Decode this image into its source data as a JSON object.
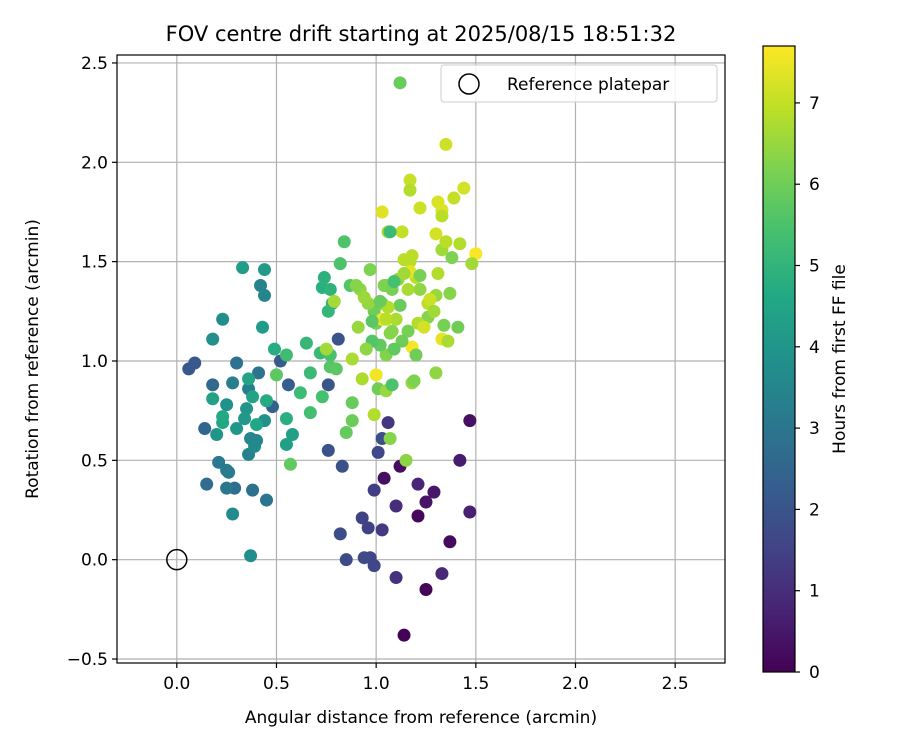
{
  "chart_data": {
    "type": "scatter",
    "title": "FOV centre drift starting at 2025/08/15 18:51:32",
    "xlabel": "Angular distance from reference (arcmin)",
    "ylabel": "Rotation from reference (arcmin)",
    "xlim": [
      -0.3,
      2.75
    ],
    "ylim": [
      -0.52,
      2.54
    ],
    "xticks": [
      0.0,
      0.5,
      1.0,
      1.5,
      2.0,
      2.5
    ],
    "xtick_labels": [
      "0.0",
      "0.5",
      "1.0",
      "1.5",
      "2.0",
      "2.5"
    ],
    "yticks": [
      -0.5,
      0.0,
      0.5,
      1.0,
      1.5,
      2.0,
      2.5
    ],
    "ytick_labels": [
      "−0.5",
      "0.0",
      "0.5",
      "1.0",
      "1.5",
      "2.0",
      "2.5"
    ],
    "grid": true,
    "legend": {
      "placement": "top-right",
      "entries": [
        "Reference platepar"
      ]
    },
    "colorbar": {
      "label": "Hours from first FF file",
      "colormap": "viridis",
      "range": [
        0,
        7.7
      ],
      "ticks": [
        0,
        1,
        2,
        3,
        4,
        5,
        6,
        7
      ],
      "tick_labels": [
        "0",
        "1",
        "2",
        "3",
        "4",
        "5",
        "6",
        "7"
      ]
    },
    "reference_point": {
      "x": 0.0,
      "y": 0.0
    },
    "points": [
      [
        1.14,
        -0.38,
        0.05
      ],
      [
        1.25,
        -0.15,
        0.1
      ],
      [
        1.21,
        0.22,
        0.15
      ],
      [
        1.37,
        0.09,
        0.2
      ],
      [
        1.12,
        0.47,
        0.25
      ],
      [
        1.04,
        0.41,
        0.3
      ],
      [
        1.47,
        0.7,
        0.35
      ],
      [
        1.25,
        0.29,
        0.4
      ],
      [
        1.29,
        0.34,
        0.5
      ],
      [
        1.42,
        0.5,
        0.6
      ],
      [
        1.47,
        0.24,
        0.7
      ],
      [
        1.21,
        0.38,
        0.8
      ],
      [
        1.33,
        -0.07,
        0.9
      ],
      [
        1.1,
        0.27,
        1.0
      ],
      [
        1.1,
        -0.09,
        1.1
      ],
      [
        1.06,
        0.69,
        1.2
      ],
      [
        1.03,
        0.15,
        1.3
      ],
      [
        0.99,
        0.35,
        1.4
      ],
      [
        0.96,
        0.16,
        1.45
      ],
      [
        0.93,
        0.21,
        1.5
      ],
      [
        0.97,
        0.01,
        1.55
      ],
      [
        0.99,
        -0.03,
        1.6
      ],
      [
        1.01,
        0.54,
        1.65
      ],
      [
        0.94,
        0.01,
        1.7
      ],
      [
        0.85,
        0.0,
        1.75
      ],
      [
        0.82,
        0.13,
        1.8
      ],
      [
        1.03,
        0.61,
        1.85
      ],
      [
        0.83,
        0.47,
        1.9
      ],
      [
        0.76,
        0.55,
        1.95
      ],
      [
        0.81,
        1.11,
        2.0
      ],
      [
        0.76,
        0.88,
        2.05
      ],
      [
        0.06,
        0.96,
        2.1
      ],
      [
        0.09,
        0.99,
        2.15
      ],
      [
        0.52,
        1.0,
        2.2
      ],
      [
        0.56,
        0.88,
        2.3
      ],
      [
        0.48,
        0.77,
        2.4
      ],
      [
        0.14,
        0.66,
        2.5
      ],
      [
        0.18,
        0.88,
        2.6
      ],
      [
        0.15,
        0.38,
        2.7
      ],
      [
        0.29,
        0.36,
        2.8
      ],
      [
        0.38,
        0.35,
        2.85
      ],
      [
        0.3,
        0.99,
        2.9
      ],
      [
        0.41,
        0.94,
        2.95
      ],
      [
        0.45,
        0.3,
        3.0
      ],
      [
        0.25,
        0.36,
        3.05
      ],
      [
        0.21,
        0.49,
        3.1
      ],
      [
        0.25,
        0.45,
        3.15
      ],
      [
        0.26,
        0.44,
        3.2
      ],
      [
        0.28,
        0.89,
        3.25
      ],
      [
        0.36,
        0.86,
        3.3
      ],
      [
        0.36,
        0.53,
        3.35
      ],
      [
        0.42,
        1.38,
        3.4
      ],
      [
        0.44,
        1.33,
        3.45
      ],
      [
        0.37,
        0.61,
        3.5
      ],
      [
        0.4,
        0.6,
        3.55
      ],
      [
        0.39,
        0.57,
        3.6
      ],
      [
        0.28,
        0.23,
        3.65
      ],
      [
        0.37,
        0.02,
        3.7
      ],
      [
        0.23,
        1.21,
        3.75
      ],
      [
        0.18,
        1.11,
        3.8
      ],
      [
        0.25,
        0.78,
        3.85
      ],
      [
        0.44,
        0.7,
        3.9
      ],
      [
        0.35,
        0.76,
        3.95
      ],
      [
        0.2,
        0.63,
        4.0
      ],
      [
        0.3,
        0.66,
        4.05
      ],
      [
        0.34,
        0.71,
        4.1
      ],
      [
        0.43,
        1.17,
        4.15
      ],
      [
        0.44,
        1.46,
        4.2
      ],
      [
        0.33,
        1.47,
        4.25
      ],
      [
        0.55,
        0.58,
        4.3
      ],
      [
        0.58,
        0.63,
        4.35
      ],
      [
        0.18,
        0.81,
        4.4
      ],
      [
        0.38,
        0.82,
        4.45
      ],
      [
        0.36,
        0.91,
        4.5
      ],
      [
        0.4,
        0.68,
        4.55
      ],
      [
        0.23,
        0.69,
        4.6
      ],
      [
        0.23,
        0.72,
        4.65
      ],
      [
        0.45,
        0.8,
        4.7
      ],
      [
        0.49,
        1.06,
        4.75
      ],
      [
        0.55,
        0.71,
        4.8
      ],
      [
        0.73,
        1.37,
        4.85
      ],
      [
        0.74,
        1.42,
        4.9
      ],
      [
        0.77,
        1.36,
        4.95
      ],
      [
        0.78,
        1.29,
        5.0
      ],
      [
        0.76,
        1.25,
        5.05
      ],
      [
        0.65,
        1.09,
        5.1
      ],
      [
        0.72,
        1.04,
        5.15
      ],
      [
        0.67,
        0.94,
        5.2
      ],
      [
        0.62,
        0.84,
        5.25
      ],
      [
        0.55,
        1.03,
        5.3
      ],
      [
        0.67,
        0.74,
        5.35
      ],
      [
        0.73,
        0.82,
        5.4
      ],
      [
        0.77,
        1.03,
        5.45
      ],
      [
        0.82,
        1.49,
        5.5
      ],
      [
        0.84,
        1.6,
        5.55
      ],
      [
        0.87,
        1.38,
        5.6
      ],
      [
        0.77,
        0.97,
        5.65
      ],
      [
        0.8,
        0.96,
        5.7
      ],
      [
        0.5,
        0.93,
        5.75
      ],
      [
        0.57,
        0.48,
        5.8
      ],
      [
        0.85,
        0.64,
        5.85
      ],
      [
        0.88,
        0.79,
        5.9
      ],
      [
        0.88,
        0.7,
        5.95
      ],
      [
        0.99,
        1.25,
        6.0
      ],
      [
        1.0,
        1.19,
        6.05
      ],
      [
        1.05,
        1.38,
        6.1
      ],
      [
        1.03,
        1.29,
        6.15
      ],
      [
        0.97,
        1.46,
        6.2
      ],
      [
        1.05,
        1.03,
        6.25
      ],
      [
        1.07,
        0.61,
        6.3
      ],
      [
        1.15,
        0.5,
        6.35
      ],
      [
        0.92,
        1.36,
        6.4
      ],
      [
        0.96,
        1.29,
        6.45
      ],
      [
        0.91,
        1.17,
        6.5
      ],
      [
        0.94,
        1.32,
        6.55
      ],
      [
        0.75,
        1.06,
        6.6
      ],
      [
        0.79,
        1.3,
        6.65
      ],
      [
        0.88,
        1.01,
        6.7
      ],
      [
        0.93,
        0.91,
        6.75
      ],
      [
        0.99,
        0.73,
        6.8
      ],
      [
        1.14,
        1.51,
        6.85
      ],
      [
        1.17,
        1.5,
        6.9
      ],
      [
        1.2,
        1.42,
        6.95
      ],
      [
        1.13,
        1.65,
        7.0
      ],
      [
        1.17,
        1.91,
        7.05
      ],
      [
        1.22,
        1.77,
        7.1
      ],
      [
        1.35,
        2.09,
        7.15
      ],
      [
        1.3,
        1.64,
        7.2
      ],
      [
        1.31,
        1.8,
        7.25
      ],
      [
        1.33,
        1.76,
        7.3
      ],
      [
        1.03,
        1.75,
        7.35
      ],
      [
        1.17,
        1.45,
        7.4
      ],
      [
        1.33,
        1.11,
        7.45
      ],
      [
        1.03,
        1.21,
        7.5
      ],
      [
        1.0,
        0.93,
        7.55
      ],
      [
        1.18,
        1.07,
        7.6
      ],
      [
        1.5,
        1.54,
        7.65
      ],
      [
        1.12,
        2.4,
        5.9
      ],
      [
        1.17,
        1.86,
        6.8
      ],
      [
        1.22,
        1.36,
        6.4
      ],
      [
        1.26,
        1.22,
        6.3
      ],
      [
        1.3,
        1.33,
        6.5
      ],
      [
        1.33,
        1.56,
        6.6
      ],
      [
        1.35,
        1.6,
        6.9
      ],
      [
        1.38,
        1.52,
        6.2
      ],
      [
        1.41,
        1.17,
        6.0
      ],
      [
        1.37,
        1.34,
        6.3
      ],
      [
        1.34,
        1.18,
        6.1
      ],
      [
        1.3,
        0.94,
        6.4
      ],
      [
        1.18,
        0.89,
        6.5
      ],
      [
        1.19,
        0.9,
        6.2
      ],
      [
        1.2,
        1.03,
        6.0
      ],
      [
        1.16,
        1.15,
        6.1
      ],
      [
        1.12,
        1.28,
        5.9
      ],
      [
        1.08,
        1.15,
        6.3
      ],
      [
        1.1,
        1.21,
        6.7
      ],
      [
        1.06,
        1.27,
        6.8
      ],
      [
        1.04,
        1.38,
        6.2
      ],
      [
        1.06,
        1.65,
        6.6
      ],
      [
        1.08,
        1.36,
        6.1
      ],
      [
        1.11,
        1.41,
        6.4
      ],
      [
        1.14,
        1.44,
        6.6
      ],
      [
        1.16,
        1.36,
        6.7
      ],
      [
        1.18,
        1.53,
        6.9
      ],
      [
        1.21,
        1.19,
        6.8
      ],
      [
        1.24,
        1.17,
        7.2
      ],
      [
        1.26,
        1.29,
        6.9
      ],
      [
        1.27,
        1.31,
        7.1
      ],
      [
        1.29,
        1.25,
        6.6
      ],
      [
        1.31,
        1.44,
        6.8
      ],
      [
        1.33,
        1.73,
        6.9
      ],
      [
        1.36,
        1.1,
        6.7
      ],
      [
        1.39,
        1.82,
        7.0
      ],
      [
        1.42,
        1.59,
        6.8
      ],
      [
        1.44,
        1.87,
        7.2
      ],
      [
        1.48,
        1.49,
        6.6
      ],
      [
        1.22,
        1.43,
        6.1
      ],
      [
        1.13,
        1.1,
        6.0
      ],
      [
        1.09,
        1.06,
        5.8
      ],
      [
        1.07,
        1.14,
        6.3
      ],
      [
        1.05,
        1.21,
        6.9
      ],
      [
        1.02,
        1.08,
        5.8
      ],
      [
        0.98,
        1.2,
        5.7
      ],
      [
        1.02,
        1.3,
        5.9
      ],
      [
        1.01,
        0.86,
        6.0
      ],
      [
        1.05,
        0.85,
        6.5
      ],
      [
        1.09,
        1.4,
        5.4
      ],
      [
        1.07,
        1.65,
        5.2
      ],
      [
        1.08,
        0.88,
        5.5
      ],
      [
        0.98,
        1.1,
        5.6
      ],
      [
        0.95,
        1.06,
        6.4
      ],
      [
        0.9,
        1.38,
        6.3
      ]
    ]
  }
}
